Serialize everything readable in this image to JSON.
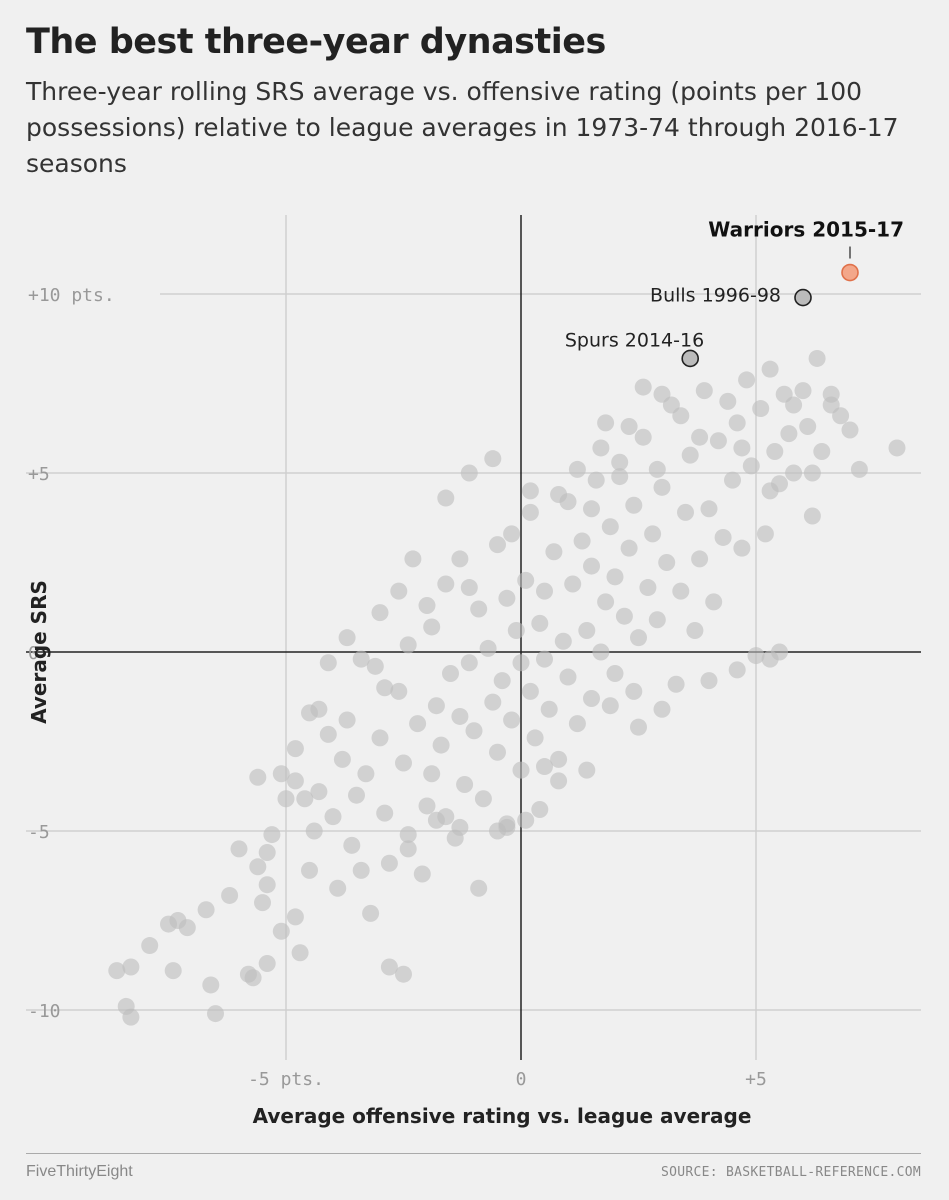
{
  "header": {
    "title": "The best three-year dynasties",
    "subtitle": "Three-year rolling SRS average vs. offensive rating (points per 100 possessions) relative to league averages in 1973-74 through 2016-17 seasons"
  },
  "chart_data": {
    "type": "scatter",
    "title": "The best three-year dynasties",
    "xlabel": "Average offensive rating vs. league average",
    "ylabel": "Average SRS",
    "xlim": [
      -10,
      8.5
    ],
    "ylim": [
      -10.8,
      12
    ],
    "x_ticks": [
      {
        "value": -5,
        "label": "-5 pts."
      },
      {
        "value": 0,
        "label": "0"
      },
      {
        "value": 5,
        "label": "+5"
      }
    ],
    "y_ticks": [
      {
        "value": 10,
        "label": "+10 pts."
      },
      {
        "value": 5,
        "label": "+5"
      },
      {
        "value": 0,
        "label": "0"
      },
      {
        "value": -5,
        "label": "-5"
      },
      {
        "value": -10,
        "label": "-10"
      }
    ],
    "grid": true,
    "point_color": "#bdbdbd",
    "highlight_neutral_color": "#bbbbbb",
    "highlight_accent_color": "#f3a78a",
    "highlighted": [
      {
        "label": "Warriors 2015-17",
        "x": 7.0,
        "y": 10.6,
        "style": "accent"
      },
      {
        "label": "Bulls 1996-98",
        "x": 6.0,
        "y": 9.9,
        "style": "neutral"
      },
      {
        "label": "Spurs 2014-16",
        "x": 3.6,
        "y": 8.2,
        "style": "neutral"
      }
    ],
    "points": [
      [
        -8.6,
        -8.9
      ],
      [
        -8.3,
        -8.8
      ],
      [
        -8.4,
        -9.9
      ],
      [
        -8.3,
        -10.2
      ],
      [
        -7.9,
        -8.2
      ],
      [
        -7.4,
        -8.9
      ],
      [
        -7.3,
        -7.5
      ],
      [
        -7.1,
        -7.7
      ],
      [
        -6.6,
        -9.3
      ],
      [
        -6.5,
        -10.1
      ],
      [
        -6.2,
        -6.8
      ],
      [
        -5.8,
        -9.0
      ],
      [
        -5.7,
        -9.1
      ],
      [
        -5.6,
        -6.0
      ],
      [
        -5.5,
        -7.0
      ],
      [
        -5.4,
        -6.5
      ],
      [
        -5.4,
        -8.7
      ],
      [
        -5.3,
        -5.1
      ],
      [
        -5.6,
        -3.5
      ],
      [
        -5.0,
        -4.1
      ],
      [
        -5.1,
        -7.8
      ],
      [
        -4.8,
        -3.6
      ],
      [
        -4.7,
        -8.4
      ],
      [
        -4.5,
        -1.7
      ],
      [
        -4.6,
        -4.1
      ],
      [
        -4.4,
        -5.0
      ],
      [
        -4.5,
        -6.1
      ],
      [
        -4.8,
        -7.4
      ],
      [
        -4.3,
        -3.9
      ],
      [
        -4.1,
        -2.3
      ],
      [
        -3.9,
        -6.6
      ],
      [
        -3.8,
        -3.0
      ],
      [
        -4.0,
        -4.6
      ],
      [
        -3.7,
        -1.9
      ],
      [
        -3.6,
        -5.4
      ],
      [
        -3.5,
        -4.0
      ],
      [
        -3.4,
        -6.1
      ],
      [
        -3.3,
        -3.4
      ],
      [
        -3.2,
        -7.3
      ],
      [
        -3.1,
        -0.4
      ],
      [
        -3.0,
        -2.4
      ],
      [
        -2.9,
        -4.5
      ],
      [
        -2.8,
        -5.9
      ],
      [
        -2.8,
        -8.8
      ],
      [
        -2.6,
        -1.1
      ],
      [
        -2.5,
        -3.1
      ],
      [
        -2.4,
        0.2
      ],
      [
        -2.4,
        -5.1
      ],
      [
        -2.5,
        -9.0
      ],
      [
        -2.2,
        -2.0
      ],
      [
        -2.1,
        -6.2
      ],
      [
        -2.0,
        -4.3
      ],
      [
        -1.9,
        0.7
      ],
      [
        -1.9,
        -3.4
      ],
      [
        -1.8,
        -1.5
      ],
      [
        -1.7,
        -2.6
      ],
      [
        -1.6,
        1.9
      ],
      [
        -1.6,
        -4.6
      ],
      [
        -1.5,
        -0.6
      ],
      [
        -1.4,
        -5.2
      ],
      [
        -1.3,
        2.6
      ],
      [
        -1.3,
        -1.8
      ],
      [
        -1.2,
        -3.7
      ],
      [
        -1.1,
        -0.3
      ],
      [
        -1.0,
        -2.2
      ],
      [
        -0.9,
        1.2
      ],
      [
        -0.9,
        -6.6
      ],
      [
        -0.8,
        -4.1
      ],
      [
        -0.7,
        0.1
      ],
      [
        -0.6,
        -1.4
      ],
      [
        -0.5,
        3.0
      ],
      [
        -0.5,
        -2.8
      ],
      [
        -0.4,
        -0.8
      ],
      [
        -0.3,
        1.5
      ],
      [
        -0.3,
        -4.8
      ],
      [
        -0.2,
        -1.9
      ],
      [
        -0.1,
        0.6
      ],
      [
        0.0,
        -0.3
      ],
      [
        0.0,
        -3.3
      ],
      [
        0.1,
        2.0
      ],
      [
        0.2,
        -1.1
      ],
      [
        0.2,
        3.9
      ],
      [
        0.3,
        -2.4
      ],
      [
        0.4,
        0.8
      ],
      [
        0.5,
        -0.2
      ],
      [
        0.5,
        1.7
      ],
      [
        0.6,
        -1.6
      ],
      [
        0.7,
        2.8
      ],
      [
        0.8,
        -3.0
      ],
      [
        0.9,
        0.3
      ],
      [
        1.0,
        4.2
      ],
      [
        1.0,
        -0.7
      ],
      [
        1.1,
        1.9
      ],
      [
        1.2,
        -2.0
      ],
      [
        1.3,
        3.1
      ],
      [
        1.4,
        0.6
      ],
      [
        1.5,
        -1.3
      ],
      [
        1.5,
        2.4
      ],
      [
        1.6,
        4.8
      ],
      [
        1.7,
        0.0
      ],
      [
        1.8,
        1.4
      ],
      [
        1.9,
        3.5
      ],
      [
        2.0,
        -0.6
      ],
      [
        2.0,
        2.1
      ],
      [
        2.1,
        5.3
      ],
      [
        2.2,
        1.0
      ],
      [
        2.3,
        2.9
      ],
      [
        2.4,
        -1.1
      ],
      [
        2.4,
        4.1
      ],
      [
        2.5,
        0.4
      ],
      [
        2.6,
        6.0
      ],
      [
        2.7,
        1.8
      ],
      [
        2.8,
        3.3
      ],
      [
        2.9,
        0.9
      ],
      [
        3.0,
        4.6
      ],
      [
        3.1,
        2.5
      ],
      [
        3.2,
        6.9
      ],
      [
        3.3,
        -0.9
      ],
      [
        3.4,
        1.7
      ],
      [
        3.5,
        3.9
      ],
      [
        3.6,
        5.5
      ],
      [
        3.7,
        0.6
      ],
      [
        3.8,
        2.6
      ],
      [
        3.9,
        7.3
      ],
      [
        4.0,
        4.0
      ],
      [
        4.1,
        1.4
      ],
      [
        4.2,
        5.9
      ],
      [
        4.3,
        3.2
      ],
      [
        4.4,
        7.0
      ],
      [
        4.5,
        4.8
      ],
      [
        4.6,
        6.4
      ],
      [
        4.7,
        2.9
      ],
      [
        4.8,
        7.6
      ],
      [
        4.9,
        5.2
      ],
      [
        5.0,
        -0.1
      ],
      [
        5.1,
        6.8
      ],
      [
        5.2,
        3.3
      ],
      [
        5.3,
        7.9
      ],
      [
        5.4,
        5.6
      ],
      [
        5.5,
        4.7
      ],
      [
        5.6,
        7.2
      ],
      [
        5.7,
        6.1
      ],
      [
        5.8,
        5.0
      ],
      [
        6.0,
        7.3
      ],
      [
        6.1,
        6.3
      ],
      [
        6.2,
        3.8
      ],
      [
        6.3,
        8.2
      ],
      [
        6.4,
        5.6
      ],
      [
        6.6,
        7.2
      ],
      [
        6.8,
        6.6
      ],
      [
        7.0,
        6.2
      ],
      [
        7.2,
        5.1
      ],
      [
        8.0,
        5.7
      ],
      [
        5.5,
        0.0
      ],
      [
        5.3,
        -0.2
      ],
      [
        4.6,
        -0.5
      ],
      [
        4.0,
        -0.8
      ],
      [
        3.0,
        -1.6
      ],
      [
        2.5,
        -2.1
      ],
      [
        1.9,
        -1.5
      ],
      [
        1.4,
        -3.3
      ],
      [
        0.8,
        -3.6
      ],
      [
        0.4,
        -4.4
      ],
      [
        0.1,
        -4.7
      ],
      [
        -0.3,
        -4.9
      ],
      [
        0.5,
        -3.2
      ],
      [
        -0.5,
        -5.0
      ],
      [
        -1.8,
        -4.7
      ],
      [
        -2.4,
        -5.5
      ],
      [
        -1.3,
        -4.9
      ],
      [
        -2.9,
        -1.0
      ],
      [
        -2.0,
        1.3
      ],
      [
        -1.1,
        1.8
      ],
      [
        -0.2,
        3.3
      ],
      [
        0.2,
        4.5
      ],
      [
        0.8,
        4.4
      ],
      [
        1.5,
        4.0
      ],
      [
        1.7,
        5.7
      ],
      [
        2.3,
        6.3
      ],
      [
        2.9,
        5.1
      ],
      [
        3.4,
        6.6
      ],
      [
        3.8,
        6.0
      ],
      [
        4.7,
        5.7
      ],
      [
        5.3,
        4.5
      ],
      [
        5.8,
        6.9
      ],
      [
        6.2,
        5.0
      ],
      [
        6.6,
        6.9
      ],
      [
        3.0,
        7.2
      ],
      [
        2.6,
        7.4
      ],
      [
        1.8,
        6.4
      ],
      [
        2.1,
        4.9
      ],
      [
        1.2,
        5.1
      ],
      [
        -0.6,
        5.4
      ],
      [
        -1.1,
        5.0
      ],
      [
        -1.6,
        4.3
      ],
      [
        -2.3,
        2.6
      ],
      [
        -2.6,
        1.7
      ],
      [
        -3.0,
        1.1
      ],
      [
        -3.4,
        -0.2
      ],
      [
        -3.7,
        0.4
      ],
      [
        -4.1,
        -0.3
      ],
      [
        -4.3,
        -1.6
      ],
      [
        -4.8,
        -2.7
      ],
      [
        -5.1,
        -3.4
      ],
      [
        -5.4,
        -5.6
      ],
      [
        -6.0,
        -5.5
      ],
      [
        -6.7,
        -7.2
      ],
      [
        -7.5,
        -7.6
      ]
    ]
  },
  "footer": {
    "brand": "FiveThirtyEight",
    "source": "SOURCE: BASKETBALL-REFERENCE.COM"
  }
}
